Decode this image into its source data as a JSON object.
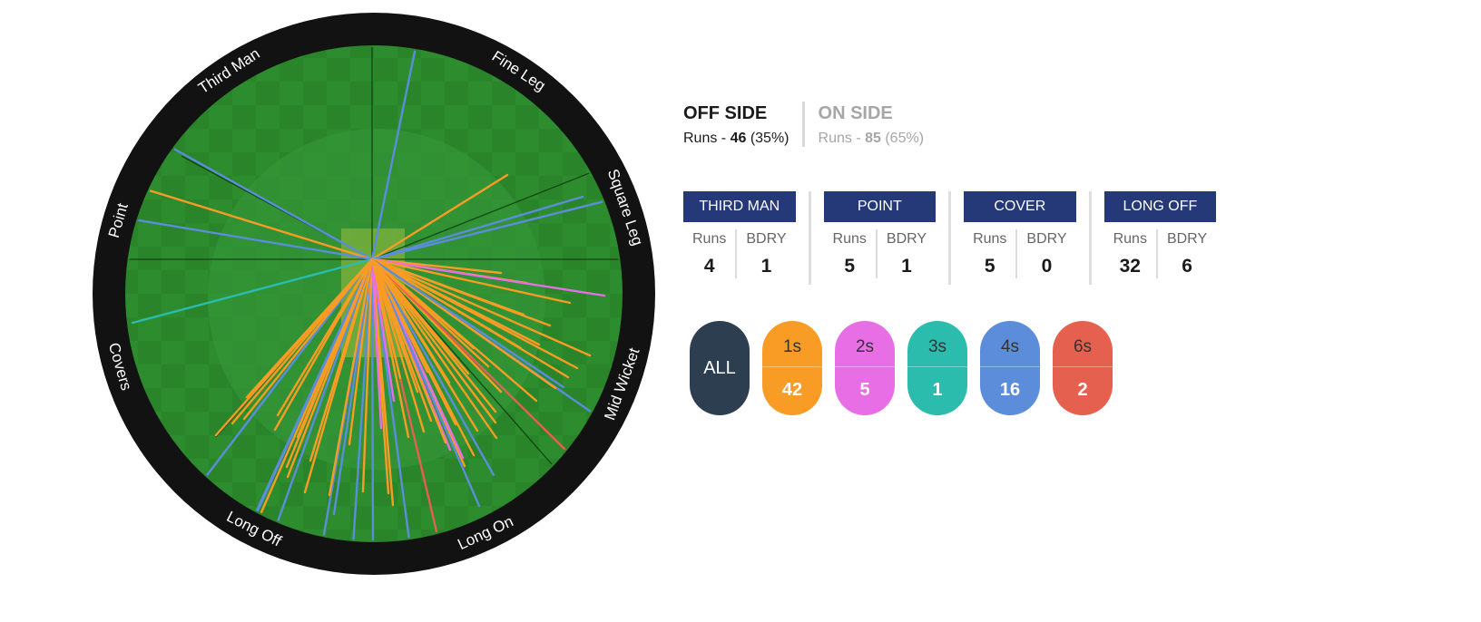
{
  "field": {
    "zone_labels": [
      "Third Man",
      "Fine Leg",
      "Square Leg",
      "Mid Wicket",
      "Long On",
      "Long Off",
      "Covers",
      "Point"
    ],
    "shot_colors": {
      "1s": "#f89c25",
      "2s": "#e86ee5",
      "3s": "#2bbcae",
      "4s": "#5b8ddb",
      "6s": "#e5604f"
    }
  },
  "sides": {
    "off": {
      "title": "OFF SIDE",
      "runs_prefix": "Runs - ",
      "runs": "46",
      "pct": "(35%)"
    },
    "on": {
      "title": "ON SIDE",
      "runs_prefix": "Runs - ",
      "runs": "85",
      "pct": "(65%)"
    }
  },
  "zones": [
    {
      "name": "THIRD MAN",
      "runs_label": "Runs",
      "bdry_label": "BDRY",
      "runs": "4",
      "bdry": "1"
    },
    {
      "name": "POINT",
      "runs_label": "Runs",
      "bdry_label": "BDRY",
      "runs": "5",
      "bdry": "1"
    },
    {
      "name": "COVER",
      "runs_label": "Runs",
      "bdry_label": "BDRY",
      "runs": "5",
      "bdry": "0"
    },
    {
      "name": "LONG OFF",
      "runs_label": "Runs",
      "bdry_label": "BDRY",
      "runs": "32",
      "bdry": "6"
    }
  ],
  "filters": [
    {
      "label": "ALL",
      "count": "",
      "color": "#2c3e50"
    },
    {
      "label": "1s",
      "count": "42",
      "color": "#f89c25"
    },
    {
      "label": "2s",
      "count": "5",
      "color": "#e86ee5"
    },
    {
      "label": "3s",
      "count": "1",
      "color": "#2bbcae"
    },
    {
      "label": "4s",
      "count": "16",
      "color": "#5b8ddb"
    },
    {
      "label": "6s",
      "count": "2",
      "color": "#e5604f"
    }
  ]
}
